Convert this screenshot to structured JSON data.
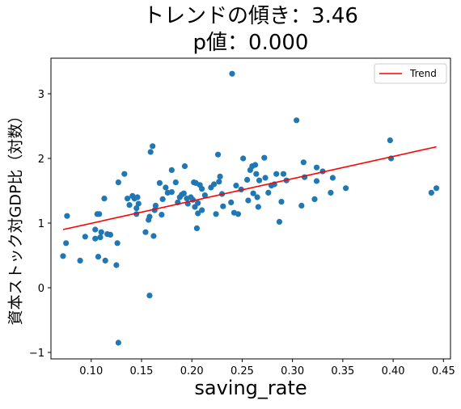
{
  "chart_data": {
    "type": "scatter",
    "title_line1": "トレンドの傾き：3.46",
    "title_line2": "p値：0.000",
    "xlabel": "saving_rate",
    "ylabel": "資本ストック対GDP比（対数）",
    "xlim": [
      0.06,
      0.457
    ],
    "ylim": [
      -1.1,
      3.55
    ],
    "xticks": [
      0.1,
      0.15,
      0.2,
      0.25,
      0.3,
      0.35,
      0.4,
      0.45
    ],
    "xtick_labels": [
      "0.10",
      "0.15",
      "0.20",
      "0.25",
      "0.30",
      "0.35",
      "0.40",
      "0.45"
    ],
    "yticks": [
      -1,
      0,
      1,
      2,
      3
    ],
    "ytick_labels": [
      "−1",
      "0",
      "1",
      "2",
      "3"
    ],
    "legend": {
      "position": "top-right",
      "entries": [
        "Trend"
      ]
    },
    "colors": {
      "points": "#1f77b4",
      "trend": "#ff0000"
    },
    "trend": {
      "x": [
        0.072,
        0.443
      ],
      "y": [
        0.9,
        2.18
      ]
    },
    "points": [
      [
        0.072,
        0.49
      ],
      [
        0.075,
        0.69
      ],
      [
        0.076,
        1.11
      ],
      [
        0.089,
        0.42
      ],
      [
        0.094,
        0.79
      ],
      [
        0.104,
        0.9
      ],
      [
        0.104,
        0.76
      ],
      [
        0.106,
        1.14
      ],
      [
        0.107,
        0.48
      ],
      [
        0.108,
        1.14
      ],
      [
        0.109,
        0.78
      ],
      [
        0.11,
        0.86
      ],
      [
        0.113,
        1.38
      ],
      [
        0.114,
        0.42
      ],
      [
        0.116,
        0.83
      ],
      [
        0.119,
        0.82
      ],
      [
        0.125,
        0.35
      ],
      [
        0.126,
        0.69
      ],
      [
        0.127,
        -0.85
      ],
      [
        0.127,
        1.63
      ],
      [
        0.133,
        1.76
      ],
      [
        0.136,
        1.38
      ],
      [
        0.138,
        1.28
      ],
      [
        0.141,
        1.42
      ],
      [
        0.143,
        1.38
      ],
      [
        0.145,
        1.23
      ],
      [
        0.146,
        1.4
      ],
      [
        0.147,
        1.3
      ],
      [
        0.145,
        1.14
      ],
      [
        0.154,
        0.86
      ],
      [
        0.157,
        1.05
      ],
      [
        0.158,
        1.1
      ],
      [
        0.158,
        -0.12
      ],
      [
        0.159,
        2.1
      ],
      [
        0.161,
        2.19
      ],
      [
        0.162,
        0.8
      ],
      [
        0.163,
        1.2
      ],
      [
        0.164,
        1.27
      ],
      [
        0.168,
        1.62
      ],
      [
        0.17,
        1.13
      ],
      [
        0.171,
        1.37
      ],
      [
        0.174,
        1.55
      ],
      [
        0.176,
        1.47
      ],
      [
        0.18,
        1.82
      ],
      [
        0.18,
        1.48
      ],
      [
        0.184,
        1.63
      ],
      [
        0.186,
        1.32
      ],
      [
        0.188,
        1.4
      ],
      [
        0.19,
        1.44
      ],
      [
        0.192,
        1.46
      ],
      [
        0.193,
        1.88
      ],
      [
        0.195,
        1.38
      ],
      [
        0.196,
        1.3
      ],
      [
        0.199,
        1.4
      ],
      [
        0.201,
        1.36
      ],
      [
        0.202,
        1.63
      ],
      [
        0.203,
        1.25
      ],
      [
        0.204,
        1.62
      ],
      [
        0.205,
        0.92
      ],
      [
        0.206,
        1.31
      ],
      [
        0.206,
        1.15
      ],
      [
        0.208,
        1.59
      ],
      [
        0.21,
        1.53
      ],
      [
        0.21,
        1.2
      ],
      [
        0.213,
        1.43
      ],
      [
        0.219,
        1.55
      ],
      [
        0.222,
        1.6
      ],
      [
        0.224,
        1.14
      ],
      [
        0.226,
        2.06
      ],
      [
        0.227,
        1.64
      ],
      [
        0.228,
        1.72
      ],
      [
        0.23,
        1.45
      ],
      [
        0.231,
        1.26
      ],
      [
        0.239,
        1.32
      ],
      [
        0.24,
        3.31
      ],
      [
        0.242,
        1.16
      ],
      [
        0.244,
        1.58
      ],
      [
        0.246,
        1.14
      ],
      [
        0.249,
        1.52
      ],
      [
        0.251,
        2.0
      ],
      [
        0.255,
        1.67
      ],
      [
        0.256,
        1.35
      ],
      [
        0.258,
        1.82
      ],
      [
        0.26,
        1.88
      ],
      [
        0.261,
        1.46
      ],
      [
        0.263,
        1.9
      ],
      [
        0.264,
        1.76
      ],
      [
        0.265,
        1.4
      ],
      [
        0.266,
        1.25
      ],
      [
        0.267,
        1.66
      ],
      [
        0.272,
        2.01
      ],
      [
        0.273,
        1.7
      ],
      [
        0.276,
        1.47
      ],
      [
        0.279,
        1.58
      ],
      [
        0.282,
        1.6
      ],
      [
        0.284,
        1.76
      ],
      [
        0.287,
        1.02
      ],
      [
        0.289,
        1.33
      ],
      [
        0.291,
        1.76
      ],
      [
        0.294,
        1.66
      ],
      [
        0.304,
        2.59
      ],
      [
        0.309,
        1.27
      ],
      [
        0.311,
        1.94
      ],
      [
        0.312,
        1.71
      ],
      [
        0.322,
        1.37
      ],
      [
        0.324,
        1.65
      ],
      [
        0.324,
        1.86
      ],
      [
        0.33,
        1.8
      ],
      [
        0.338,
        1.47
      ],
      [
        0.34,
        1.7
      ],
      [
        0.353,
        1.54
      ],
      [
        0.397,
        2.28
      ],
      [
        0.398,
        2.0
      ],
      [
        0.438,
        1.47
      ],
      [
        0.443,
        1.54
      ]
    ]
  }
}
